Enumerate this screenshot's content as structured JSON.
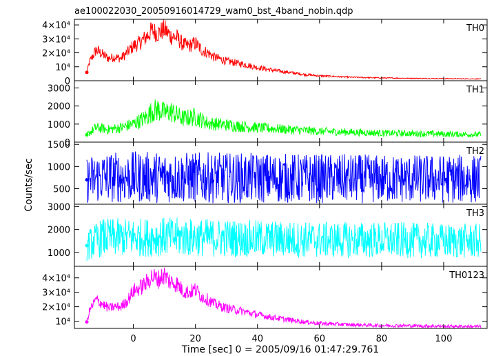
{
  "title": "ae100022030_20050916014729_wam0_bst_4band_nobin.qdp",
  "ylabel": "Counts/sec",
  "xlabel": "Time [sec] 0 = 2005/09/16 01:47:29.761",
  "chart_data": {
    "type": "line",
    "title": "ae100022030_20050916014729_wam0_bst_4band_nobin.qdp",
    "xlabel": "Time [sec] 0 = 2005/09/16 01:47:29.761",
    "ylabel": "Counts/sec",
    "xlim": [
      -19,
      114
    ],
    "xticks": [
      0,
      20,
      40,
      60,
      80,
      100
    ],
    "xtick_labels": [
      "0",
      "20",
      "40",
      "60",
      "80",
      "100"
    ],
    "series": [
      {
        "name": "TH0",
        "color": "#ff0000",
        "ylim": [
          0,
          44000
        ],
        "yticks": [
          0,
          10000,
          20000,
          30000,
          40000
        ],
        "ytick_labels": [
          "0",
          "10⁴",
          "2×10⁴",
          "3×10⁴",
          "4×10⁴"
        ],
        "noise": 0.12,
        "x": [
          -15,
          -14,
          -12,
          -10,
          -8,
          -6,
          -4,
          -2,
          0,
          2,
          4,
          6,
          8,
          10,
          12,
          14,
          16,
          18,
          20,
          22,
          24,
          26,
          28,
          30,
          35,
          40,
          45,
          50,
          55,
          60,
          70,
          80,
          90,
          100,
          112
        ],
        "y": [
          6000,
          14000,
          22000,
          19000,
          16000,
          17000,
          16000,
          20000,
          25000,
          27000,
          31000,
          36000,
          34000,
          37000,
          32000,
          31000,
          26000,
          25000,
          27000,
          22000,
          20000,
          17000,
          15500,
          14000,
          12000,
          9500,
          7500,
          6000,
          4500,
          3500,
          2500,
          2000,
          1700,
          1500,
          1300
        ]
      },
      {
        "name": "TH1",
        "color": "#00ff00",
        "ylim": [
          0,
          3400
        ],
        "yticks": [
          0,
          1000,
          2000,
          3000
        ],
        "ytick_labels": [
          "0",
          "1000",
          "2000",
          "3000"
        ],
        "noise": 0.22,
        "x": [
          -15,
          -12,
          -8,
          -4,
          0,
          4,
          6,
          8,
          10,
          12,
          16,
          20,
          24,
          30,
          40,
          50,
          60,
          80,
          100,
          112
        ],
        "y": [
          400,
          800,
          700,
          800,
          1000,
          1350,
          1700,
          1800,
          1600,
          1700,
          1300,
          1400,
          1050,
          950,
          800,
          700,
          600,
          500,
          450,
          420
        ]
      },
      {
        "name": "TH2",
        "color": "#0000ff",
        "ylim": [
          150,
          1550
        ],
        "yticks": [
          500,
          1000,
          1500
        ],
        "ytick_labels": [
          "500",
          "1000",
          "1500"
        ],
        "noise": 0.45,
        "x": [
          -15,
          -10,
          0,
          10,
          20,
          40,
          60,
          80,
          100,
          112
        ],
        "y": [
          700,
          760,
          760,
          760,
          750,
          740,
          730,
          720,
          720,
          720
        ]
      },
      {
        "name": "TH3",
        "color": "#00ffff",
        "ylim": [
          400,
          3100
        ],
        "yticks": [
          1000,
          2000,
          3000
        ],
        "ytick_labels": [
          "1000",
          "2000",
          "3000"
        ],
        "noise": 0.3,
        "x": [
          -15,
          -10,
          0,
          10,
          20,
          40,
          60,
          80,
          100,
          112
        ],
        "y": [
          1300,
          1650,
          1650,
          1680,
          1650,
          1600,
          1550,
          1550,
          1500,
          1500
        ]
      },
      {
        "name": "TH0123",
        "color": "#ff00ff",
        "ylim": [
          5000,
          48000
        ],
        "yticks": [
          10000,
          20000,
          30000,
          40000
        ],
        "ytick_labels": [
          "10⁴",
          "2×10⁴",
          "3×10⁴",
          "4×10⁴"
        ],
        "noise": 0.1,
        "x": [
          -15,
          -14,
          -12,
          -10,
          -8,
          -6,
          -4,
          -2,
          0,
          2,
          4,
          6,
          8,
          10,
          12,
          14,
          16,
          18,
          20,
          22,
          24,
          26,
          28,
          30,
          35,
          40,
          45,
          50,
          55,
          60,
          70,
          80,
          90,
          100,
          112
        ],
        "y": [
          9500,
          18000,
          25000,
          22000,
          19000,
          20000,
          20000,
          24000,
          31000,
          33000,
          36000,
          41000,
          39000,
          42000,
          37000,
          36000,
          31000,
          30000,
          32000,
          27000,
          25000,
          22000,
          20500,
          19000,
          17000,
          14500,
          12500,
          11000,
          9500,
          8500,
          7500,
          7000,
          6800,
          6500,
          6300
        ]
      }
    ]
  }
}
